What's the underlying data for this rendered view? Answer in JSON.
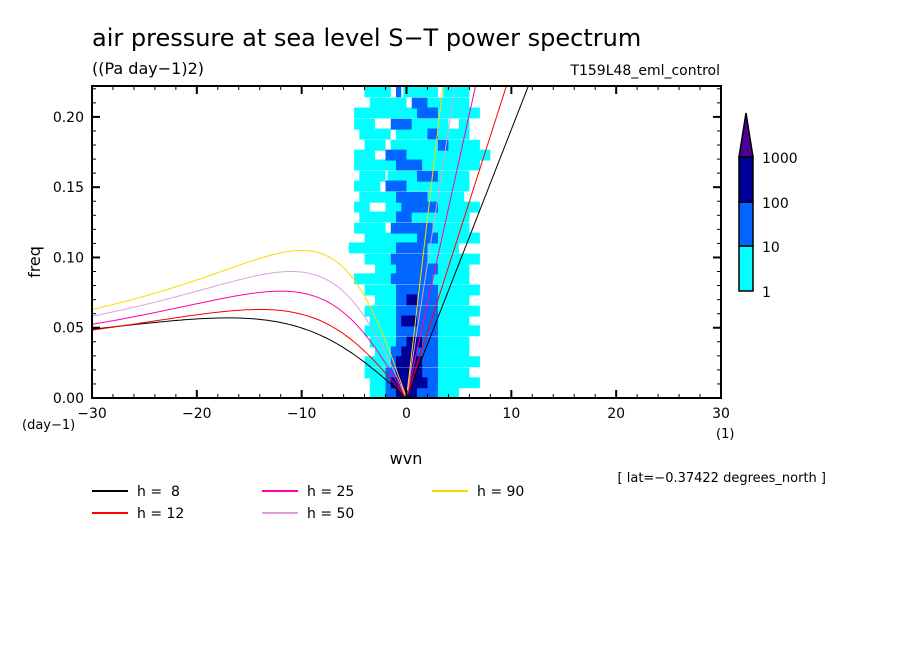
{
  "chart_data": {
    "type": "heatmap",
    "title": "air pressure at sea level S−T power spectrum",
    "units": "((Pa day−1)2)",
    "dataset": "T159L48_eml_control",
    "xlabel": "wvn",
    "ylabel": "freq",
    "x_unit_label": "(1)",
    "y_unit_label": "(day−1)",
    "xlim": [
      -30,
      30
    ],
    "ylim": [
      0,
      0.222
    ],
    "x_ticks": [
      -30,
      -20,
      -10,
      0,
      10,
      20,
      30
    ],
    "x_tick_labels": [
      "−30",
      "−20",
      "−10",
      "0",
      "10",
      "20",
      "30"
    ],
    "x_minor_step": 2,
    "y_ticks": [
      0,
      0.05,
      0.1,
      0.15,
      0.2
    ],
    "y_tick_labels": [
      "0.00",
      "0.05",
      "0.10",
      "0.15",
      "0.20"
    ],
    "y_minor_step": 0.01,
    "annotation": "[ lat=−0.37422 degrees_north ]",
    "colorbar": {
      "levels": [
        1,
        10,
        100,
        1000
      ],
      "level_labels": [
        "1",
        "10",
        "100",
        "1000"
      ],
      "colors": [
        "#00ffff",
        "#0066ff",
        "#000099",
        "#4b0096"
      ],
      "extend": "max"
    },
    "field": {
      "description": "log10 power bands: 1=cyan(1-10), 2=blue(10-100), 3=dark blue(100-1000)",
      "freq_step": 0.0074,
      "rows": [
        {
          "f": 0.218,
          "segs": [
            [
              -4,
              -1.5,
              1
            ],
            [
              -1,
              -0.5,
              2
            ],
            [
              -0.3,
              3,
              1
            ],
            [
              3.5,
              6,
              1
            ]
          ]
        },
        {
          "f": 0.21,
          "segs": [
            [
              -3.5,
              0,
              1
            ],
            [
              0.5,
              2,
              2
            ],
            [
              2,
              6,
              1
            ]
          ]
        },
        {
          "f": 0.203,
          "segs": [
            [
              -5,
              -2,
              1
            ],
            [
              -2,
              1,
              1
            ],
            [
              1,
              3,
              2
            ],
            [
              3,
              7,
              1
            ]
          ]
        },
        {
          "f": 0.195,
          "segs": [
            [
              -5,
              -3,
              1
            ],
            [
              -1.5,
              0.5,
              2
            ],
            [
              0.5,
              4,
              1
            ],
            [
              5,
              6,
              1
            ]
          ]
        },
        {
          "f": 0.188,
          "segs": [
            [
              -4.5,
              -1.5,
              1
            ],
            [
              -1,
              6,
              1
            ],
            [
              2,
              3,
              2
            ]
          ]
        },
        {
          "f": 0.18,
          "segs": [
            [
              -4,
              -2,
              1
            ],
            [
              -1.5,
              3.5,
              1
            ],
            [
              3,
              4,
              2
            ],
            [
              4,
              7,
              1
            ]
          ]
        },
        {
          "f": 0.173,
          "segs": [
            [
              -5,
              -3,
              1
            ],
            [
              -2,
              0,
              2
            ],
            [
              0,
              5,
              1
            ],
            [
              5,
              8,
              1
            ]
          ]
        },
        {
          "f": 0.166,
          "segs": [
            [
              -5,
              -1,
              1
            ],
            [
              -1,
              1.5,
              2
            ],
            [
              1.5,
              7,
              1
            ]
          ]
        },
        {
          "f": 0.158,
          "segs": [
            [
              -4.5,
              -2,
              1
            ],
            [
              -1.8,
              1,
              1
            ],
            [
              1,
              3,
              2
            ],
            [
              3,
              6,
              1
            ]
          ]
        },
        {
          "f": 0.151,
          "segs": [
            [
              -5,
              -2.5,
              1
            ],
            [
              -2,
              0,
              2
            ],
            [
              0,
              6,
              1
            ]
          ]
        },
        {
          "f": 0.143,
          "segs": [
            [
              -4.5,
              -1,
              1
            ],
            [
              -1,
              2,
              2
            ],
            [
              2,
              5.5,
              1
            ]
          ]
        },
        {
          "f": 0.136,
          "segs": [
            [
              -5,
              -3.5,
              1
            ],
            [
              -2,
              -0.5,
              1
            ],
            [
              -0.5,
              3,
              2
            ],
            [
              3,
              7,
              1
            ]
          ]
        },
        {
          "f": 0.129,
          "segs": [
            [
              -4.5,
              -1,
              1
            ],
            [
              -1,
              0.5,
              2
            ],
            [
              0.5,
              6,
              1
            ]
          ]
        },
        {
          "f": 0.121,
          "segs": [
            [
              -5,
              -2,
              1
            ],
            [
              -1.5,
              2.5,
              2
            ],
            [
              2.5,
              6,
              1
            ]
          ]
        },
        {
          "f": 0.114,
          "segs": [
            [
              -4,
              -1.5,
              1
            ],
            [
              -1.5,
              1,
              1
            ],
            [
              1,
              3,
              2
            ],
            [
              3,
              7,
              1
            ]
          ]
        },
        {
          "f": 0.107,
          "segs": [
            [
              -5.5,
              -1,
              1
            ],
            [
              -1,
              2,
              2
            ],
            [
              2,
              5,
              1
            ]
          ]
        },
        {
          "f": 0.099,
          "segs": [
            [
              -4,
              -1.5,
              1
            ],
            [
              -1.5,
              2,
              2
            ],
            [
              2,
              7,
              1
            ]
          ]
        },
        {
          "f": 0.092,
          "segs": [
            [
              -3,
              -1,
              1
            ],
            [
              -1,
              3,
              2
            ],
            [
              3,
              6,
              1
            ]
          ]
        },
        {
          "f": 0.085,
          "segs": [
            [
              -5,
              -1.5,
              1
            ],
            [
              -1.5,
              2.5,
              2
            ],
            [
              2.5,
              6,
              1
            ]
          ]
        },
        {
          "f": 0.077,
          "segs": [
            [
              -4,
              -1,
              1
            ],
            [
              -1,
              3,
              2
            ],
            [
              3,
              7,
              1
            ]
          ]
        },
        {
          "f": 0.07,
          "segs": [
            [
              -3,
              -1,
              1
            ],
            [
              -1,
              1,
              2
            ],
            [
              0,
              1,
              3
            ],
            [
              1,
              3,
              2
            ],
            [
              3,
              6,
              1
            ]
          ]
        },
        {
          "f": 0.062,
          "segs": [
            [
              -4,
              -1,
              1
            ],
            [
              -1,
              3,
              2
            ],
            [
              3,
              7,
              1
            ]
          ]
        },
        {
          "f": 0.055,
          "segs": [
            [
              -3.5,
              -1,
              1
            ],
            [
              -1,
              1,
              2
            ],
            [
              -0.5,
              1,
              3
            ],
            [
              1,
              3,
              2
            ],
            [
              3,
              6,
              1
            ]
          ]
        },
        {
          "f": 0.048,
          "segs": [
            [
              -4,
              -1,
              1
            ],
            [
              -1,
              3,
              2
            ],
            [
              3,
              7,
              1
            ]
          ]
        },
        {
          "f": 0.04,
          "segs": [
            [
              -3.5,
              -1,
              1
            ],
            [
              -1,
              0.5,
              2
            ],
            [
              0,
              1.5,
              3
            ],
            [
              1.5,
              3,
              2
            ],
            [
              3,
              6,
              1
            ]
          ]
        },
        {
          "f": 0.033,
          "segs": [
            [
              -3,
              -1.5,
              1
            ],
            [
              -1.5,
              3,
              2
            ],
            [
              -0.5,
              1,
              3
            ],
            [
              3,
              6,
              1
            ]
          ]
        },
        {
          "f": 0.026,
          "segs": [
            [
              -4,
              -1.5,
              1
            ],
            [
              -1.5,
              3,
              2
            ],
            [
              -1,
              1.5,
              3
            ],
            [
              3,
              7,
              1
            ]
          ]
        },
        {
          "f": 0.018,
          "segs": [
            [
              -4,
              -2,
              1
            ],
            [
              -2,
              3,
              2
            ],
            [
              -1,
              1.5,
              3
            ],
            [
              3,
              6,
              1
            ]
          ]
        },
        {
          "f": 0.011,
          "segs": [
            [
              -3.5,
              -2,
              1
            ],
            [
              -2,
              3,
              2
            ],
            [
              -1.5,
              2,
              3
            ],
            [
              3,
              7,
              1
            ]
          ]
        },
        {
          "f": 0.004,
          "segs": [
            [
              -3.5,
              -2,
              1
            ],
            [
              -2,
              3,
              2
            ],
            [
              -1,
              1,
              3
            ],
            [
              3,
              5,
              1
            ]
          ]
        }
      ]
    },
    "dispersion_curves": {
      "depths_m": [
        8,
        12,
        25,
        50,
        90
      ],
      "labels": [
        "h =  8",
        "h = 12",
        "h = 25",
        "h = 50",
        "h = 90"
      ],
      "colors": [
        "#000000",
        "#ff0000",
        "#ff00aa",
        "#dda0dd",
        "#ffd700"
      ],
      "kelvin_slope_cpd_per_wvn": [
        0.0191,
        0.0233,
        0.0337,
        0.0477,
        0.0639
      ],
      "er_peak_freq_cpd": [
        0.057,
        0.063,
        0.076,
        0.09,
        0.105
      ]
    }
  }
}
